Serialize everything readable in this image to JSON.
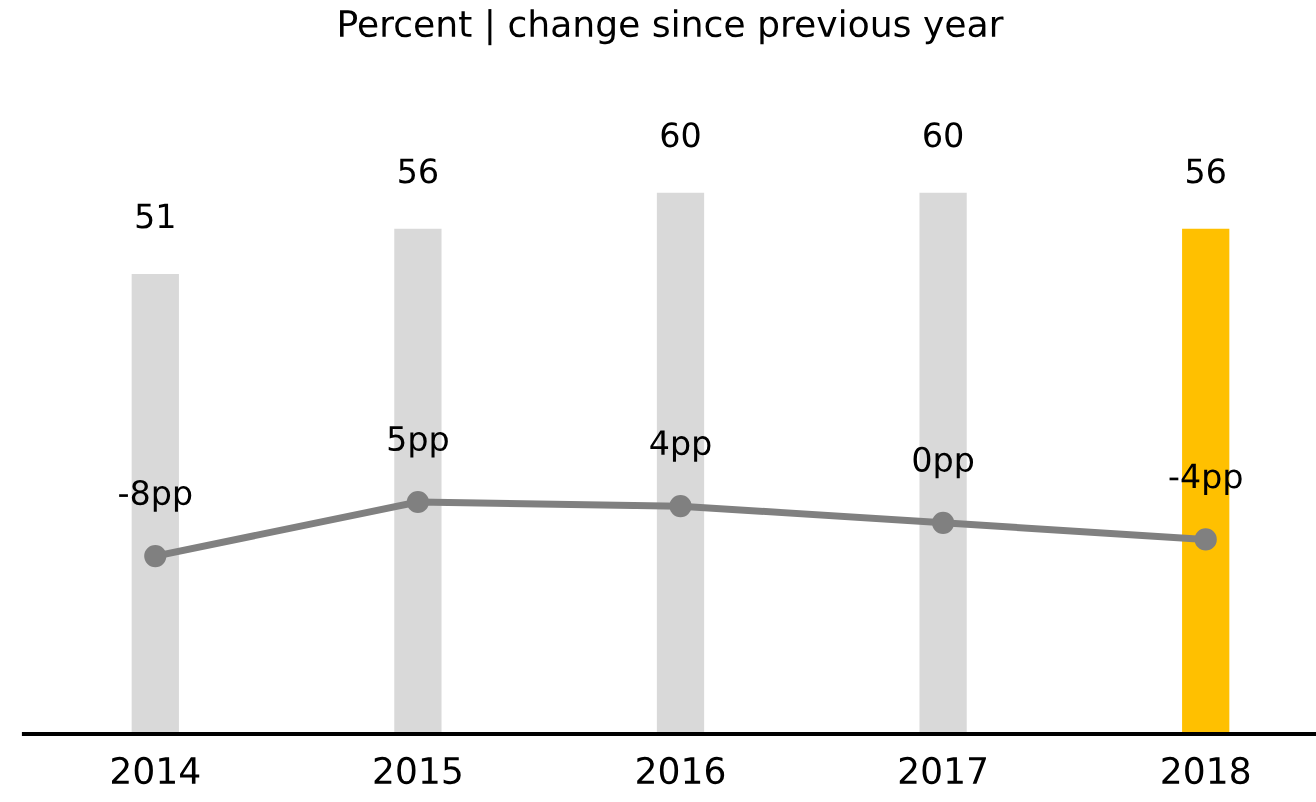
{
  "chart_data": {
    "type": "bar",
    "title": "Percent | change since previous year",
    "categories": [
      "2014",
      "2015",
      "2016",
      "2017",
      "2018"
    ],
    "tick_labels": "x",
    "grid": false,
    "legend": false,
    "series": [
      {
        "colors": [
          "#d9d9d9",
          "#d9d9d9",
          "#d9d9d9",
          "#d9d9d9",
          "#ffc000"
        ],
        "values": [
          51,
          56,
          60,
          60,
          56
        ],
        "value_labels": [
          "51",
          "56",
          "60",
          "60",
          "56"
        ]
      },
      {
        "type": "line",
        "axis": "y2",
        "color": "#808080",
        "marker": "circle",
        "line_style": "solid",
        "values": [
          -8,
          5,
          4,
          0,
          -4
        ],
        "value_labels": [
          "-8pp",
          "5pp",
          "4pp",
          "0pp",
          "-4pp"
        ]
      }
    ]
  }
}
